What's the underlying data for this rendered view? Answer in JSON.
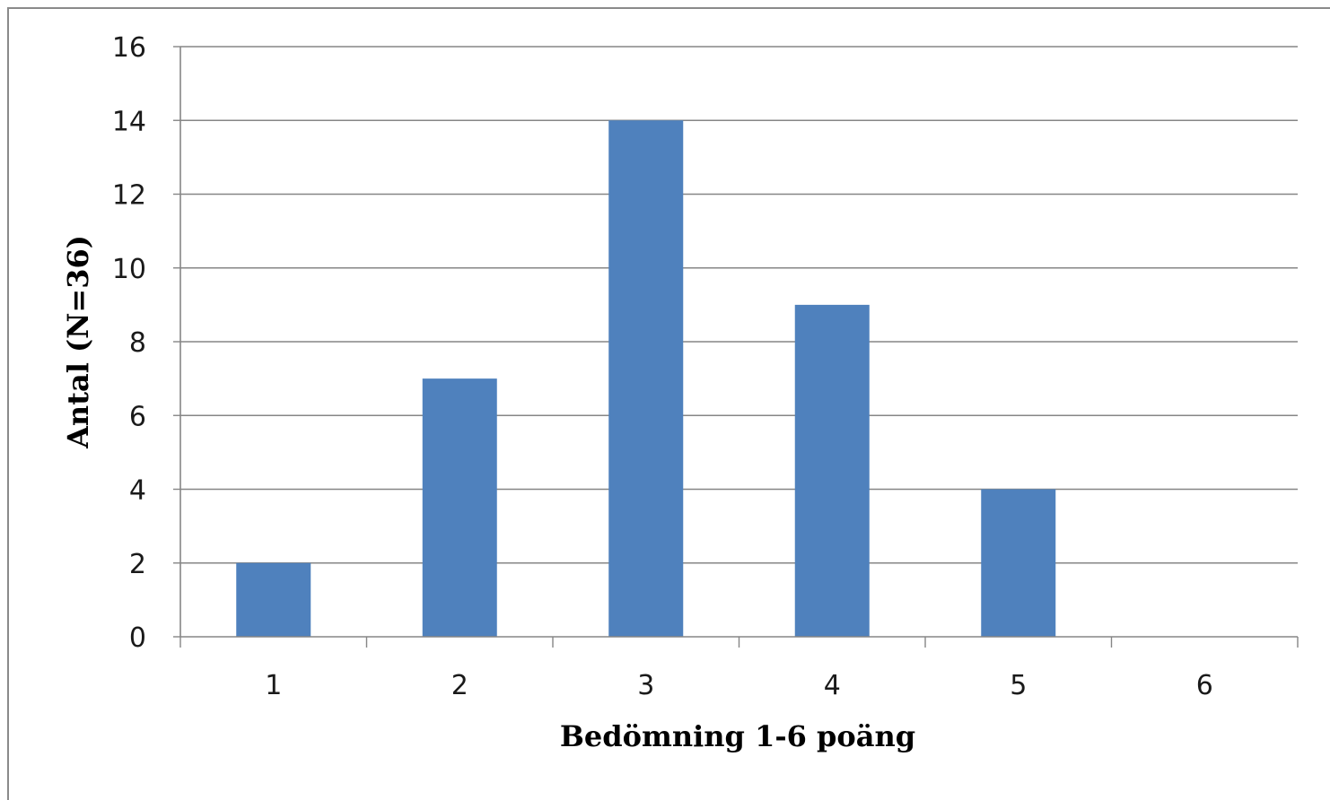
{
  "chart_data": {
    "type": "bar",
    "title": "",
    "xlabel": "Bedömning 1-6 poäng",
    "ylabel": "Antal (N=36)",
    "categories": [
      "1",
      "2",
      "3",
      "4",
      "5",
      "6"
    ],
    "values": [
      2,
      7,
      14,
      9,
      4,
      0
    ],
    "ylim": [
      0,
      16
    ],
    "yticks": [
      "0",
      "2",
      "4",
      "6",
      "8",
      "10",
      "12",
      "14",
      "16"
    ],
    "grid": true,
    "legend": "none",
    "bar_color": "#4f81bd",
    "grid_color": "#868686"
  }
}
